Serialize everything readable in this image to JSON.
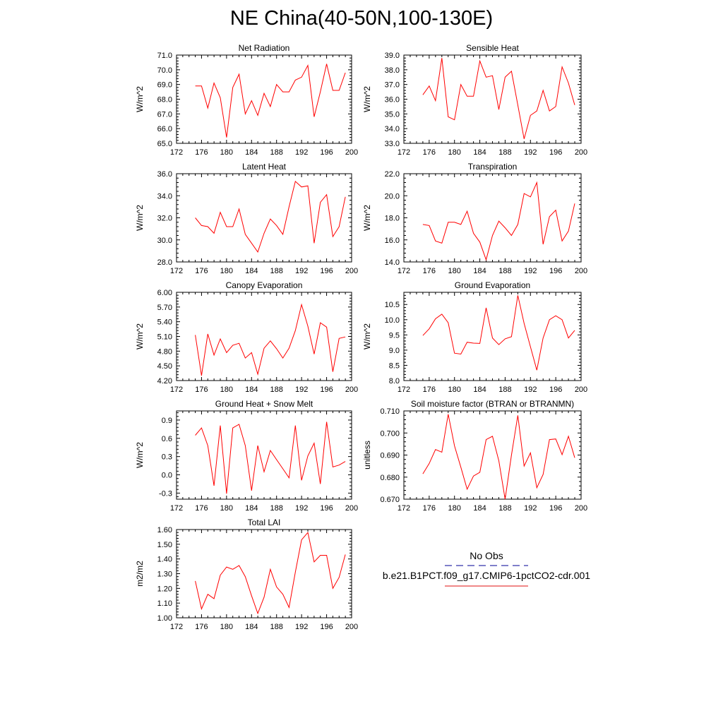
{
  "title": "NE China(40-50N,100-130E)",
  "legend": {
    "entries": [
      {
        "label": "No Obs",
        "color": "#3333aa",
        "dash": "dashed"
      },
      {
        "label": "b.e21.B1PCT.f09_g17.CMIP6-1pctCO2-cdr.001",
        "color": "#e84040",
        "dash": "solid"
      }
    ]
  },
  "chart_data": [
    {
      "type": "line",
      "title": "Net Radiation",
      "ylabel": "W/m^2",
      "xlim": [
        172,
        200
      ],
      "ylim": [
        65.0,
        71.0
      ],
      "xticks": [
        "172",
        "176",
        "180",
        "184",
        "188",
        "192",
        "196",
        "200"
      ],
      "yticks": [
        "65.0",
        "66.0",
        "67.0",
        "68.0",
        "69.0",
        "70.0",
        "71.0"
      ],
      "x": [
        175,
        176,
        177,
        178,
        179,
        180,
        181,
        182,
        183,
        184,
        185,
        186,
        187,
        188,
        189,
        190,
        191,
        192,
        193,
        194,
        195,
        196,
        197,
        198,
        199
      ],
      "series": [
        {
          "color": "#ff0000",
          "values": [
            68.9,
            68.9,
            67.4,
            69.1,
            68.1,
            65.4,
            68.8,
            69.7,
            67.0,
            67.9,
            66.9,
            68.4,
            67.5,
            69.0,
            68.5,
            68.5,
            69.3,
            69.5,
            70.3,
            66.8,
            68.5,
            70.4,
            68.6,
            68.6,
            69.8
          ]
        }
      ]
    },
    {
      "type": "line",
      "title": "Sensible Heat",
      "ylabel": "W/m^2",
      "xlim": [
        172,
        200
      ],
      "ylim": [
        33.0,
        39.0
      ],
      "xticks": [
        "172",
        "176",
        "180",
        "184",
        "188",
        "192",
        "196",
        "200"
      ],
      "yticks": [
        "33.0",
        "34.0",
        "35.0",
        "36.0",
        "37.0",
        "38.0",
        "39.0"
      ],
      "x": [
        175,
        176,
        177,
        178,
        179,
        180,
        181,
        182,
        183,
        184,
        185,
        186,
        187,
        188,
        189,
        190,
        191,
        192,
        193,
        194,
        195,
        196,
        197,
        198,
        199
      ],
      "series": [
        {
          "color": "#ff0000",
          "values": [
            36.3,
            36.9,
            35.9,
            38.8,
            34.8,
            34.6,
            37.0,
            36.2,
            36.2,
            38.6,
            37.5,
            37.6,
            35.3,
            37.5,
            37.9,
            35.6,
            33.3,
            34.9,
            35.2,
            36.6,
            35.2,
            35.5,
            38.2,
            37.1,
            35.6
          ]
        }
      ]
    },
    {
      "type": "line",
      "title": "Latent Heat",
      "ylabel": "W/m^2",
      "xlim": [
        172,
        200
      ],
      "ylim": [
        28.0,
        36.0
      ],
      "xticks": [
        "172",
        "176",
        "180",
        "184",
        "188",
        "192",
        "196",
        "200"
      ],
      "yticks": [
        "28.0",
        "30.0",
        "32.0",
        "34.0",
        "36.0"
      ],
      "x": [
        175,
        176,
        177,
        178,
        179,
        180,
        181,
        182,
        183,
        184,
        185,
        186,
        187,
        188,
        189,
        190,
        191,
        192,
        193,
        194,
        195,
        196,
        197,
        198,
        199
      ],
      "series": [
        {
          "color": "#ff0000",
          "values": [
            32.0,
            31.3,
            31.2,
            30.6,
            32.5,
            31.2,
            31.2,
            32.8,
            30.5,
            29.7,
            28.9,
            30.6,
            31.9,
            31.3,
            30.5,
            33.0,
            35.3,
            34.8,
            34.9,
            29.7,
            33.4,
            34.1,
            30.3,
            31.2,
            33.9
          ]
        }
      ]
    },
    {
      "type": "line",
      "title": "Transpiration",
      "ylabel": "W/m^2",
      "xlim": [
        172,
        200
      ],
      "ylim": [
        14.0,
        22.0
      ],
      "xticks": [
        "172",
        "176",
        "180",
        "184",
        "188",
        "192",
        "196",
        "200"
      ],
      "yticks": [
        "14.0",
        "16.0",
        "18.0",
        "20.0",
        "22.0"
      ],
      "x": [
        175,
        176,
        177,
        178,
        179,
        180,
        181,
        182,
        183,
        184,
        185,
        186,
        187,
        188,
        189,
        190,
        191,
        192,
        193,
        194,
        195,
        196,
        197,
        198,
        199
      ],
      "series": [
        {
          "color": "#ff0000",
          "values": [
            17.4,
            17.3,
            15.9,
            15.7,
            17.6,
            17.6,
            17.4,
            18.6,
            16.6,
            15.8,
            14.2,
            16.4,
            17.7,
            17.1,
            16.4,
            17.4,
            20.2,
            19.9,
            21.2,
            15.6,
            18.1,
            18.7,
            15.9,
            16.8,
            19.3
          ]
        }
      ]
    },
    {
      "type": "line",
      "title": "Canopy Evaporation",
      "ylabel": "W/m^2",
      "xlim": [
        172,
        200
      ],
      "ylim": [
        4.2,
        6.0
      ],
      "xticks": [
        "172",
        "176",
        "180",
        "184",
        "188",
        "192",
        "196",
        "200"
      ],
      "yticks": [
        "4.20",
        "4.50",
        "4.80",
        "5.10",
        "5.40",
        "5.70",
        "6.00"
      ],
      "x": [
        175,
        176,
        177,
        178,
        179,
        180,
        181,
        182,
        183,
        184,
        185,
        186,
        187,
        188,
        189,
        190,
        191,
        192,
        193,
        194,
        195,
        196,
        197,
        198,
        199
      ],
      "series": [
        {
          "color": "#ff0000",
          "values": [
            5.13,
            4.3,
            5.15,
            4.72,
            5.05,
            4.77,
            4.92,
            4.96,
            4.66,
            4.77,
            4.33,
            4.86,
            5.01,
            4.85,
            4.66,
            4.86,
            5.22,
            5.75,
            5.31,
            4.74,
            5.38,
            5.29,
            4.38,
            5.06,
            5.09
          ]
        }
      ]
    },
    {
      "type": "line",
      "title": "Ground Evaporation",
      "ylabel": "W/m^2",
      "xlim": [
        172,
        200
      ],
      "ylim": [
        8.0,
        10.9
      ],
      "xticks": [
        "172",
        "176",
        "180",
        "184",
        "188",
        "192",
        "196",
        "200"
      ],
      "yticks": [
        "8.0",
        "8.5",
        "9.0",
        "9.5",
        "10.0",
        "10.5"
      ],
      "x": [
        175,
        176,
        177,
        178,
        179,
        180,
        181,
        182,
        183,
        184,
        185,
        186,
        187,
        188,
        189,
        190,
        191,
        192,
        193,
        194,
        195,
        196,
        197,
        198,
        199
      ],
      "series": [
        {
          "color": "#ff0000",
          "values": [
            9.48,
            9.7,
            10.03,
            10.18,
            9.9,
            8.9,
            8.87,
            9.26,
            9.23,
            9.22,
            10.39,
            9.4,
            9.18,
            9.37,
            9.44,
            10.8,
            9.88,
            9.11,
            8.34,
            9.4,
            10.0,
            10.13,
            10.0,
            9.4,
            9.65
          ]
        }
      ]
    },
    {
      "type": "line",
      "title": "Ground Heat + Snow Melt",
      "ylabel": "W/m^2",
      "xlim": [
        172,
        200
      ],
      "ylim": [
        -0.4,
        1.05
      ],
      "xticks": [
        "172",
        "176",
        "180",
        "184",
        "188",
        "192",
        "196",
        "200"
      ],
      "yticks": [
        "-0.3",
        "0.0",
        "0.3",
        "0.6",
        "0.9"
      ],
      "x": [
        175,
        176,
        177,
        178,
        179,
        180,
        181,
        182,
        183,
        184,
        185,
        186,
        187,
        188,
        189,
        190,
        191,
        192,
        193,
        194,
        195,
        196,
        197,
        198,
        199
      ],
      "series": [
        {
          "color": "#ff0000",
          "values": [
            0.65,
            0.77,
            0.48,
            -0.18,
            0.81,
            -0.31,
            0.77,
            0.83,
            0.48,
            -0.26,
            0.48,
            0.05,
            0.4,
            0.25,
            0.1,
            -0.05,
            0.81,
            -0.09,
            0.31,
            0.52,
            -0.15,
            0.87,
            0.13,
            0.16,
            0.22
          ]
        }
      ]
    },
    {
      "type": "line",
      "title": "Soil moisture factor (BTRAN or BTRANMN)",
      "ylabel": "unitless",
      "xlim": [
        172,
        200
      ],
      "ylim": [
        0.67,
        0.71
      ],
      "xticks": [
        "172",
        "176",
        "180",
        "184",
        "188",
        "192",
        "196",
        "200"
      ],
      "yticks": [
        "0.670",
        "0.680",
        "0.690",
        "0.700",
        "0.710"
      ],
      "x": [
        175,
        176,
        177,
        178,
        179,
        180,
        181,
        182,
        183,
        184,
        185,
        186,
        187,
        188,
        189,
        190,
        191,
        192,
        193,
        194,
        195,
        196,
        197,
        198,
        199
      ],
      "series": [
        {
          "color": "#ff0000",
          "values": [
            0.6815,
            0.6862,
            0.6925,
            0.6913,
            0.7085,
            0.6942,
            0.6845,
            0.6745,
            0.6805,
            0.6822,
            0.697,
            0.6985,
            0.6874,
            0.67,
            0.69,
            0.708,
            0.685,
            0.691,
            0.6752,
            0.6812,
            0.697,
            0.6973,
            0.6902,
            0.6985,
            0.6888
          ]
        }
      ]
    },
    {
      "type": "line",
      "title": "Total LAI",
      "ylabel": "m2/m2",
      "xlim": [
        172,
        200
      ],
      "ylim": [
        1.0,
        1.6
      ],
      "xticks": [
        "172",
        "176",
        "180",
        "184",
        "188",
        "192",
        "196",
        "200"
      ],
      "yticks": [
        "1.00",
        "1.10",
        "1.20",
        "1.30",
        "1.40",
        "1.50",
        "1.60"
      ],
      "x": [
        175,
        176,
        177,
        178,
        179,
        180,
        181,
        182,
        183,
        184,
        185,
        186,
        187,
        188,
        189,
        190,
        191,
        192,
        193,
        194,
        195,
        196,
        197,
        198,
        199
      ],
      "series": [
        {
          "color": "#ff0000",
          "values": [
            1.25,
            1.06,
            1.16,
            1.13,
            1.29,
            1.345,
            1.33,
            1.355,
            1.28,
            1.15,
            1.03,
            1.14,
            1.33,
            1.21,
            1.16,
            1.07,
            1.31,
            1.53,
            1.58,
            1.38,
            1.425,
            1.425,
            1.2,
            1.275,
            1.43
          ]
        }
      ]
    }
  ]
}
